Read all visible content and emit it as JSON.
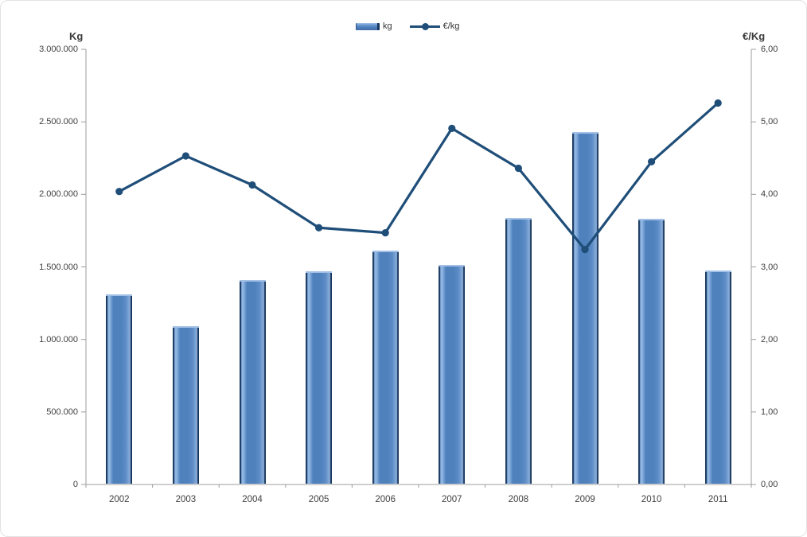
{
  "chart_data": {
    "type": "combo",
    "title": "",
    "categories": [
      "2002",
      "2003",
      "2004",
      "2005",
      "2006",
      "2007",
      "2008",
      "2009",
      "2010",
      "2011"
    ],
    "series": [
      {
        "name": "kg",
        "type": "bar",
        "axis": "left",
        "values": [
          1310000,
          1090000,
          1410000,
          1470000,
          1615000,
          1515000,
          1840000,
          2430000,
          1830000,
          1475000
        ]
      },
      {
        "name": "€/kg",
        "type": "line",
        "axis": "right",
        "values": [
          4.04,
          4.53,
          4.13,
          3.54,
          3.47,
          4.91,
          4.36,
          3.24,
          4.45,
          5.26
        ]
      }
    ],
    "left_axis": {
      "title": "Kg",
      "min": 0,
      "max": 3000000,
      "step": 500000,
      "tick_labels": [
        "3.000.000",
        "2.500.000",
        "2.000.000",
        "1.500.000",
        "1.000.000",
        "500.000",
        "0"
      ]
    },
    "right_axis": {
      "title": "€/Kg",
      "min": 0,
      "max": 6,
      "step": 1,
      "tick_labels": [
        "6,00",
        "5,00",
        "4,00",
        "3,00",
        "2,00",
        "1,00",
        "0,00"
      ]
    },
    "legend": {
      "position": "top",
      "entries": [
        {
          "label": "kg",
          "type": "bar"
        },
        {
          "label": "€/kg",
          "type": "line"
        }
      ]
    },
    "grid": false,
    "colors": {
      "bar_fill": "#4F81BD",
      "bar_edge": "#17375E",
      "bar_highlight": "#96BBE6",
      "line": "#1F4E79",
      "axis": "#9C9C9C",
      "text": "#3F3F3F"
    }
  }
}
